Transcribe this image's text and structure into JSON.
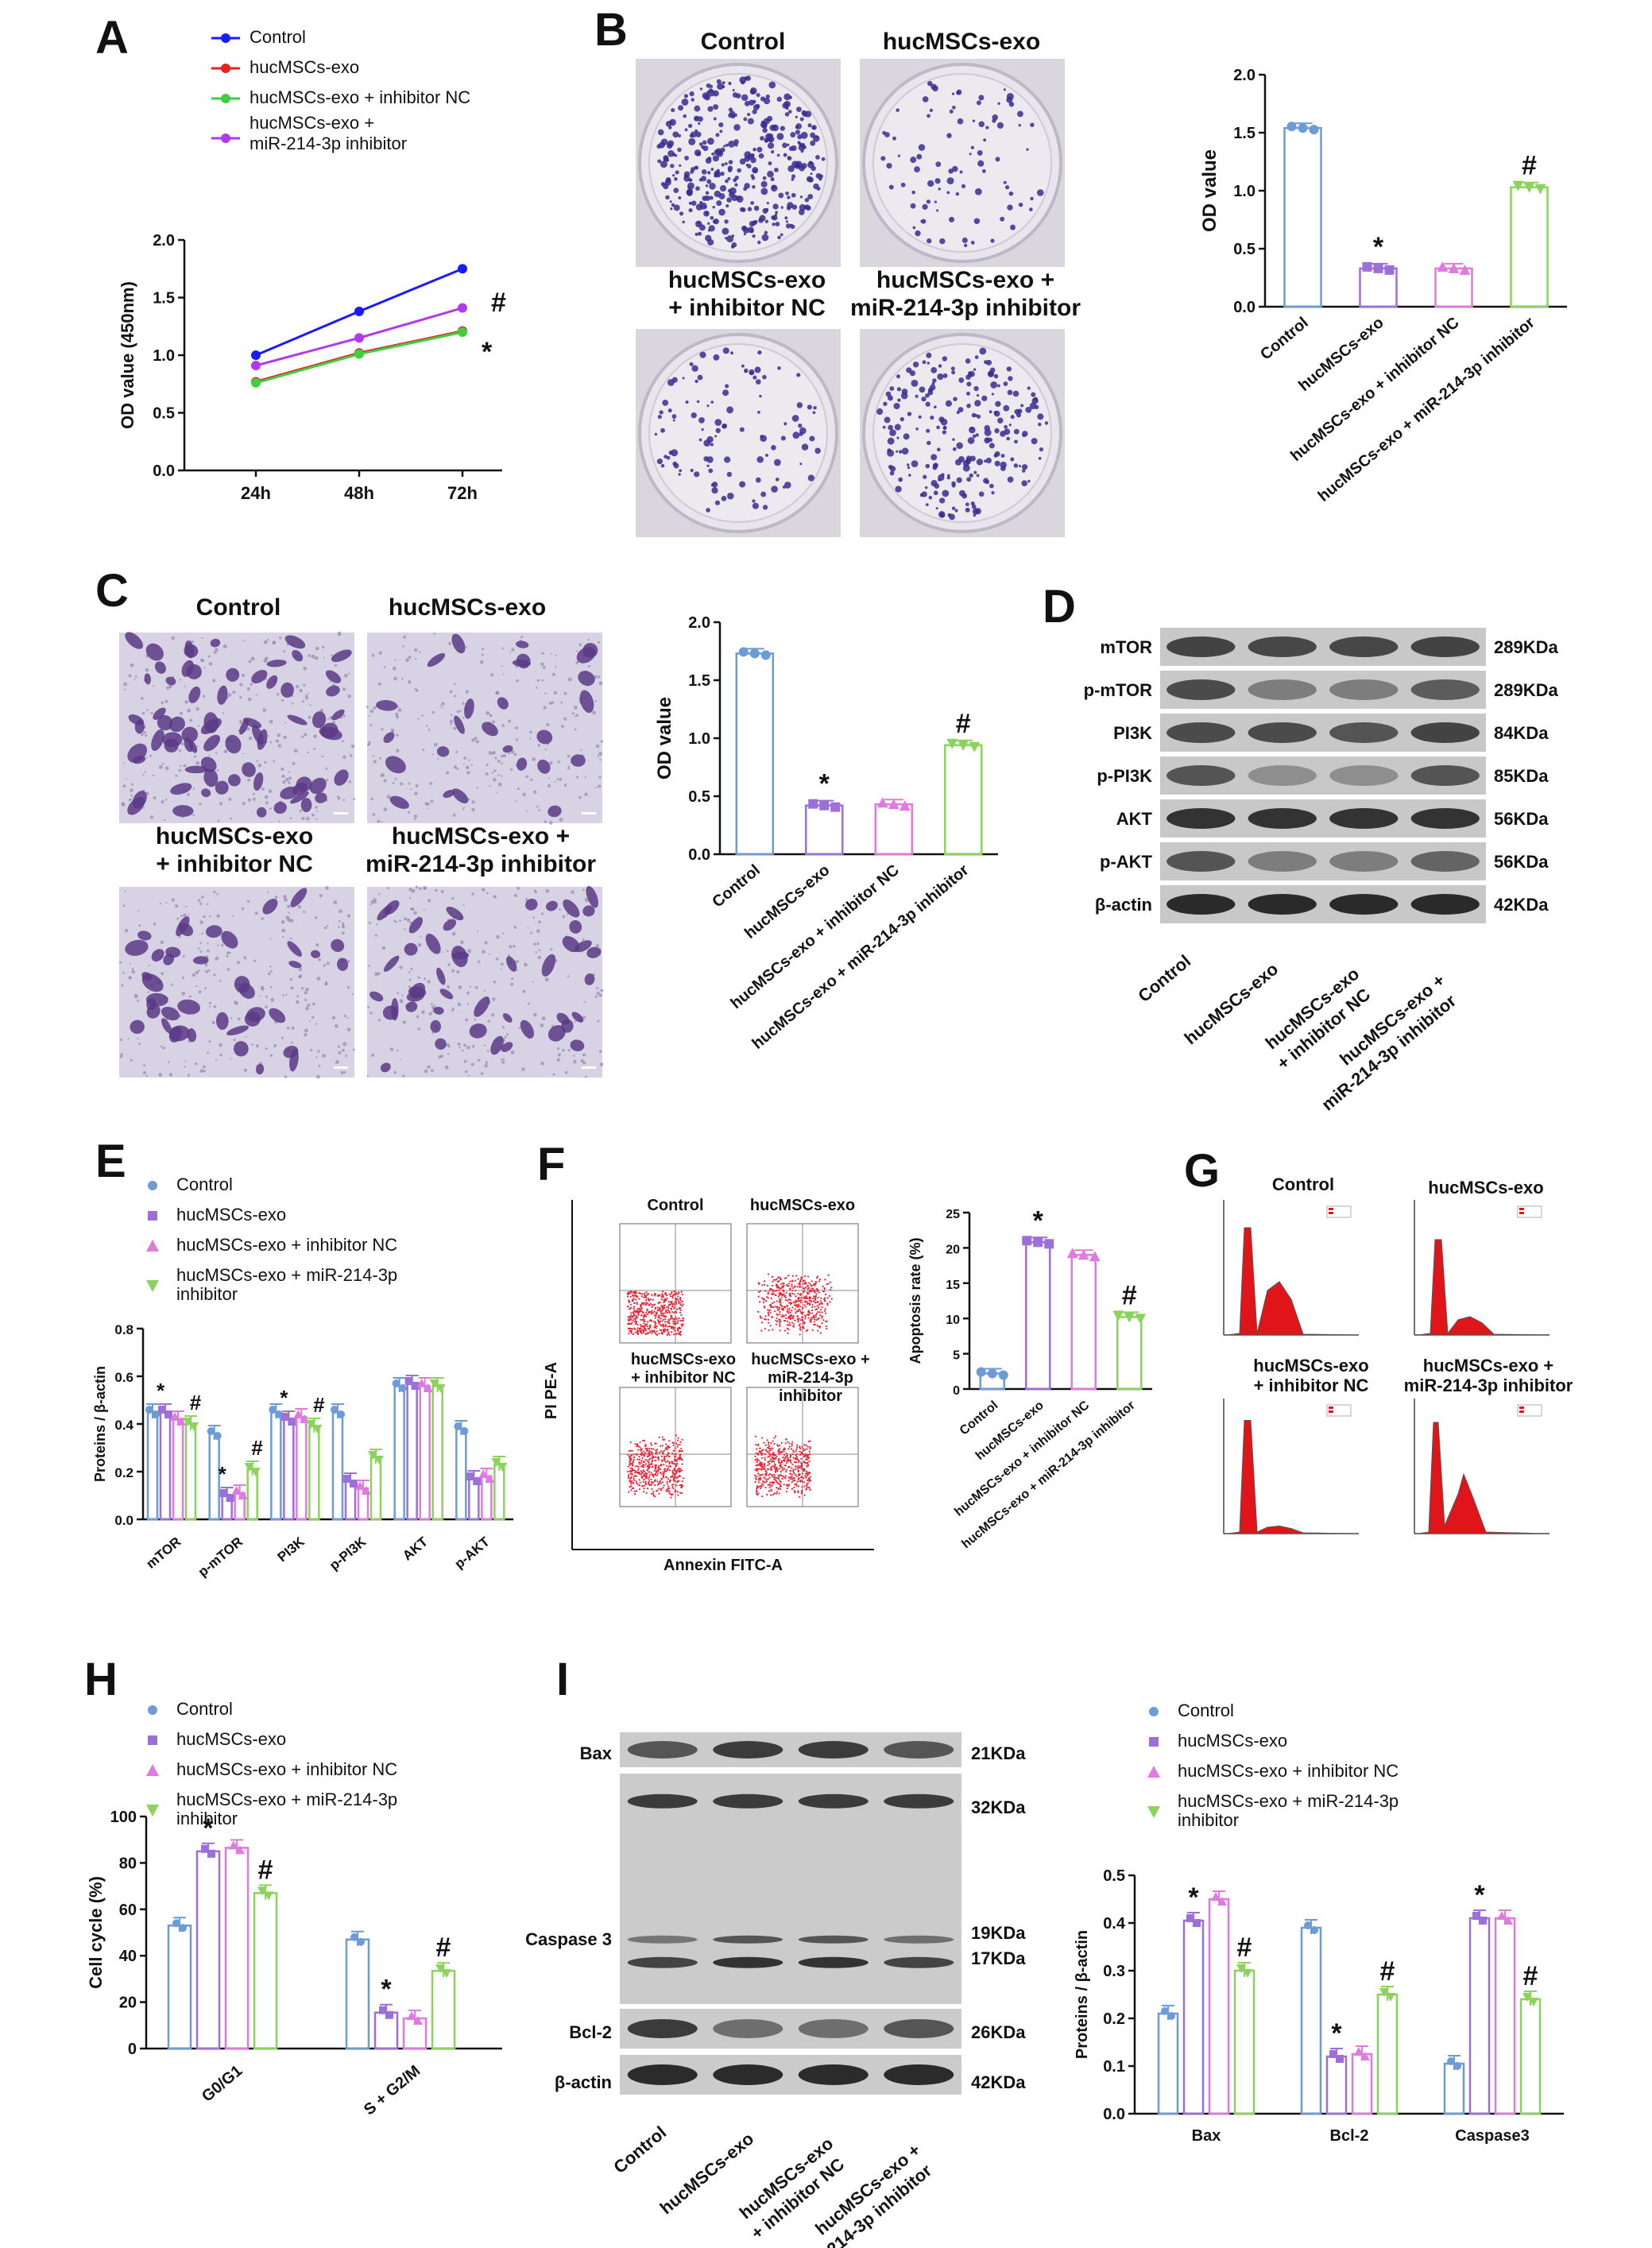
{
  "letters": {
    "A": "A",
    "B": "B",
    "C": "C",
    "D": "D",
    "E": "E",
    "F": "F",
    "G": "G",
    "H": "H",
    "I": "I"
  },
  "groups": {
    "g1": "Control",
    "g2": "hucMSCs-exo",
    "g3": "hucMSCs-exo + inhibitor NC",
    "g4": "hucMSCs-exo + miR-214-3p inhibitor",
    "g3_two_lines": [
      "hucMSCs-exo",
      "+ inhibitor NC"
    ],
    "g4_two_lines": [
      "hucMSCs-exo +",
      "miR-214-3p inhibitor"
    ],
    "g4_legend_lines": [
      "hucMSCs-exo +",
      "miR-214-3p inhibitor"
    ],
    "g4_legend_lines_p": [
      "hucMSCs-exo + miR-214-3p",
      "inhibitor"
    ]
  },
  "colors": {
    "blue": "#1a1aff",
    "red": "#e8231f",
    "green": "#3ecf3e",
    "purple": "#b23aee",
    "bar_blue": "#6d9bd6",
    "bar_purple": "#9d6fd8",
    "bar_pink": "#e07ae0",
    "bar_green": "#8bd35a"
  },
  "panelA": {
    "chart_data": {
      "type": "line",
      "categories": [
        "24h",
        "48h",
        "72h"
      ],
      "series": [
        {
          "name": "Control",
          "values": [
            1.0,
            1.38,
            1.75
          ]
        },
        {
          "name": "hucMSCs-exo",
          "values": [
            0.77,
            1.02,
            1.21
          ]
        },
        {
          "name": "hucMSCs-exo + inhibitor NC",
          "values": [
            0.76,
            1.01,
            1.2
          ]
        },
        {
          "name": "hucMSCs-exo + miR-214-3p inhibitor",
          "values": [
            0.91,
            1.15,
            1.41
          ]
        }
      ],
      "ylabel": "OD value (450nm)",
      "ylim": [
        0,
        2.0
      ],
      "yticks": [
        "0.0",
        "0.5",
        "1.0",
        "1.5",
        "2.0"
      ],
      "annotations": [
        "#",
        "*"
      ]
    }
  },
  "panelB": {
    "chart_data": {
      "type": "bar",
      "categories": [
        "Control",
        "hucMSCs-exo",
        "hucMSCs-exo + inhibitor NC",
        "hucMSCs-exo + miR-214-3p inhibitor"
      ],
      "values": [
        1.54,
        0.33,
        0.33,
        1.03
      ],
      "ylabel": "OD value",
      "ylim": [
        0,
        2.0
      ],
      "yticks": [
        "0.0",
        "0.5",
        "1.0",
        "1.5",
        "2.0"
      ],
      "annotations": [
        "",
        "*",
        "",
        "#"
      ]
    }
  },
  "panelC": {
    "chart_data": {
      "type": "bar",
      "categories": [
        "Control",
        "hucMSCs-exo",
        "hucMSCs-exo + inhibitor NC",
        "hucMSCs-exo + miR-214-3p inhibitor"
      ],
      "values": [
        1.73,
        0.42,
        0.43,
        0.94
      ],
      "ylabel": "OD value",
      "ylim": [
        0,
        2.0
      ],
      "yticks": [
        "0.0",
        "0.5",
        "1.0",
        "1.5",
        "2.0"
      ],
      "annotations": [
        "",
        "*",
        "",
        "#"
      ]
    }
  },
  "panelD": {
    "rows": [
      {
        "name": "mTOR",
        "mw": "289KDa"
      },
      {
        "name": "p-mTOR",
        "mw": "289KDa"
      },
      {
        "name": "PI3K",
        "mw": "84KDa"
      },
      {
        "name": "p-PI3K",
        "mw": "85KDa"
      },
      {
        "name": "AKT",
        "mw": "56KDa"
      },
      {
        "name": "p-AKT",
        "mw": "56KDa"
      },
      {
        "name": "β-actin",
        "mw": "42KDa"
      }
    ]
  },
  "panelE": {
    "chart_data": {
      "type": "bar",
      "categories": [
        "mTOR",
        "p-mTOR",
        "PI3K",
        "p-PI3K",
        "AKT",
        "p-AKT"
      ],
      "series": [
        {
          "name": "Control",
          "values": [
            0.45,
            0.36,
            0.45,
            0.45,
            0.56,
            0.38
          ]
        },
        {
          "name": "hucMSCs-exo",
          "values": [
            0.45,
            0.1,
            0.42,
            0.16,
            0.57,
            0.17
          ]
        },
        {
          "name": "hucMSCs-exo + inhibitor NC",
          "values": [
            0.42,
            0.11,
            0.43,
            0.13,
            0.56,
            0.18
          ]
        },
        {
          "name": "hucMSCs-exo + miR-214-3p inhibitor",
          "values": [
            0.4,
            0.21,
            0.39,
            0.26,
            0.56,
            0.23
          ]
        }
      ],
      "ylabel": "Proteins / β-actin",
      "ylim": [
        0,
        0.8
      ],
      "yticks": [
        "0.0",
        "0.2",
        "0.4",
        "0.6",
        "0.8"
      ],
      "annotations": [
        "*",
        "#",
        "*",
        "#",
        "*",
        "#"
      ]
    }
  },
  "panelF": {
    "flow_titles": [
      "Control",
      "hucMSCs-exo"
    ],
    "flow_titles2": [
      [
        "hucMSCs-exo",
        "+ inhibitor NC"
      ],
      [
        "hucMSCs-exo +",
        "miR-214-3p inhibitor"
      ]
    ],
    "yaxis": "PI PE-A",
    "xaxis": "Annexin FITC-A",
    "chart_data": {
      "type": "bar",
      "categories": [
        "Control",
        "hucMSCs-exo",
        "hucMSCs-exo + inhibitor NC",
        "hucMSCs-exo + miR-214-3p inhibitor"
      ],
      "values": [
        2.2,
        20.8,
        19.0,
        10.2
      ],
      "ylabel": "Apoptosis rate (%)",
      "ylim": [
        0,
        25
      ],
      "yticks": [
        "0",
        "5",
        "10",
        "15",
        "20",
        "25"
      ],
      "annotations": [
        "",
        "*",
        "",
        "#"
      ]
    }
  },
  "panelG": {
    "titles": [
      "Control",
      "hucMSCs-exo"
    ],
    "titles2": [
      [
        "hucMSCs-exo",
        "+ inhibitor NC"
      ],
      [
        "hucMSCs-exo +",
        "miR-214-3p inhibitor"
      ]
    ]
  },
  "panelH": {
    "chart_data": {
      "type": "bar",
      "categories": [
        "G0/G1",
        "S + G2/M"
      ],
      "series": [
        {
          "name": "Control",
          "values": [
            53,
            47
          ]
        },
        {
          "name": "hucMSCs-exo",
          "values": [
            85,
            15.5
          ]
        },
        {
          "name": "hucMSCs-exo + inhibitor NC",
          "values": [
            86.5,
            13
          ]
        },
        {
          "name": "hucMSCs-exo + miR-214-3p inhibitor",
          "values": [
            67,
            33.5
          ]
        }
      ],
      "ylabel": "Cell cycle (%)",
      "ylim": [
        0,
        100
      ],
      "yticks": [
        "0",
        "20",
        "40",
        "60",
        "80",
        "100"
      ],
      "annotations": [
        "*",
        "#",
        "*",
        "#"
      ]
    }
  },
  "panelI": {
    "rows": [
      {
        "name": "Bax",
        "mw": "21KDa"
      },
      {
        "name": "",
        "mw": "32KDa"
      },
      {
        "name": "Caspase 3",
        "mw": "19KDa"
      },
      {
        "name": "",
        "mw": "17KDa"
      },
      {
        "name": "Bcl-2",
        "mw": "26KDa"
      },
      {
        "name": "β-actin",
        "mw": "42KDa"
      }
    ],
    "chart_data": {
      "type": "bar",
      "categories": [
        "Bax",
        "Bcl-2",
        "Caspase3"
      ],
      "series": [
        {
          "name": "Control",
          "values": [
            0.21,
            0.39,
            0.105
          ]
        },
        {
          "name": "hucMSCs-exo",
          "values": [
            0.405,
            0.12,
            0.41
          ]
        },
        {
          "name": "hucMSCs-exo + inhibitor NC",
          "values": [
            0.45,
            0.125,
            0.41
          ]
        },
        {
          "name": "hucMSCs-exo + miR-214-3p inhibitor",
          "values": [
            0.3,
            0.25,
            0.24
          ]
        }
      ],
      "ylabel": "Proteins / β-actin",
      "ylim": [
        0,
        0.5
      ],
      "yticks": [
        "0.0",
        "0.1",
        "0.2",
        "0.3",
        "0.4",
        "0.5"
      ],
      "annotations": [
        "*",
        "#",
        "*",
        "#",
        "*",
        "#"
      ]
    }
  }
}
